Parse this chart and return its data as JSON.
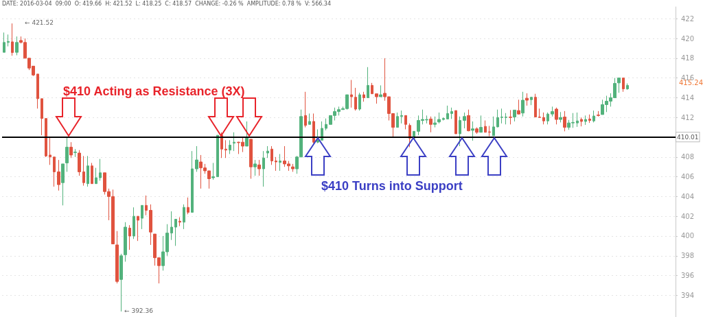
{
  "chart_data": {
    "type": "candlestick",
    "categories": [
      null,
      null,
      null,
      null,
      null,
      null,
      null,
      null,
      null,
      null,
      null,
      null,
      null,
      null,
      null,
      null,
      null,
      null,
      null,
      null,
      null,
      null,
      null,
      null,
      null,
      null,
      null,
      null,
      null,
      null,
      null,
      null,
      null,
      null,
      null,
      null,
      null,
      null,
      null,
      null,
      null,
      null,
      null,
      null,
      null,
      null,
      null,
      null,
      null,
      null,
      null,
      null,
      null,
      null,
      null,
      null,
      null,
      null,
      null,
      null,
      null,
      null,
      null,
      null,
      null,
      null,
      null,
      null,
      null,
      null,
      null,
      null,
      null,
      null,
      null,
      null,
      null,
      null,
      null,
      null,
      null,
      null,
      null,
      null,
      null,
      null,
      null,
      null,
      null,
      null,
      null,
      null,
      null,
      null,
      null,
      null,
      null,
      null,
      null,
      null,
      null,
      null,
      null,
      null,
      null,
      null,
      null,
      null,
      null,
      null,
      null,
      null,
      null,
      null,
      null,
      null,
      null,
      null,
      null,
      null,
      null,
      null,
      null,
      null,
      null,
      null,
      null,
      null,
      null,
      null,
      null,
      null,
      null,
      null,
      null,
      null,
      null,
      null,
      null,
      null,
      null,
      null,
      null,
      null,
      null,
      null,
      null,
      null,
      null,
      null,
      null,
      null,
      null,
      null,
      null,
      null,
      null,
      null,
      null,
      null,
      null
    ],
    "ohlc": [
      [
        418.6,
        420.6,
        418.6,
        419.6
      ],
      [
        419.6,
        420.4,
        419.2,
        419.7
      ],
      [
        419.66,
        421.52,
        418.25,
        418.57
      ],
      [
        418.6,
        420.2,
        418.3,
        419.6
      ],
      [
        419.8,
        420.2,
        419.5,
        419.6
      ],
      [
        419.6,
        420.0,
        418.0,
        418.0
      ],
      [
        418.0,
        418.0,
        416.8,
        417.0
      ],
      [
        417.2,
        417.2,
        416.2,
        416.3
      ],
      [
        416.4,
        416.4,
        412.9,
        413.9
      ],
      [
        413.9,
        413.9,
        410.2,
        411.9
      ],
      [
        411.9,
        411.9,
        408.0,
        408.1
      ],
      [
        408.2,
        410.0,
        407.2,
        408.0
      ],
      [
        408.0,
        408.0,
        405.0,
        406.5
      ],
      [
        406.5,
        407.7,
        404.6,
        405.2
      ],
      [
        405.4,
        407.3,
        403.1,
        407.3
      ],
      [
        407.4,
        410.0,
        406.5,
        409.0
      ],
      [
        409.0,
        409.5,
        407.9,
        408.2
      ],
      [
        408.45,
        408.8,
        408.0,
        408.5
      ],
      [
        408.4,
        408.7,
        406.1,
        406.5
      ],
      [
        406.5,
        408.1,
        405.1,
        405.4
      ],
      [
        405.3,
        408.1,
        405.0,
        407.1
      ],
      [
        407.1,
        407.4,
        405.3,
        405.3
      ],
      [
        405.3,
        406.9,
        405.3,
        405.9
      ],
      [
        405.9,
        407.8,
        405.6,
        406.4
      ],
      [
        406.4,
        406.4,
        404.2,
        404.5
      ],
      [
        404.5,
        404.8,
        401.6,
        404.0
      ],
      [
        404.0,
        404.7,
        399.2,
        399.2
      ],
      [
        399.1,
        400.5,
        395.2,
        395.4
      ],
      [
        395.6,
        398.2,
        392.36,
        398.0
      ],
      [
        398.1,
        401.4,
        397.4,
        400.9
      ],
      [
        400.8,
        401.1,
        398.6,
        400.0
      ],
      [
        400.0,
        402.9,
        399.7,
        402.0
      ],
      [
        402.0,
        402.0,
        399.5,
        401.6
      ],
      [
        401.8,
        403.1,
        400.7,
        403.1
      ],
      [
        403.1,
        404.1,
        402.1,
        402.6
      ],
      [
        402.6,
        403.2,
        399.1,
        400.4
      ],
      [
        400.2,
        400.2,
        397.0,
        397.8
      ],
      [
        397.8,
        397.8,
        395.2,
        397.0
      ],
      [
        397.0,
        400.0,
        396.5,
        398.4
      ],
      [
        398.4,
        401.2,
        398.0,
        400.3
      ],
      [
        400.3,
        402.5,
        399.6,
        400.9
      ],
      [
        400.9,
        401.7,
        399.0,
        401.7
      ],
      [
        401.5,
        401.9,
        401.0,
        401.4
      ],
      [
        401.4,
        403.2,
        400.7,
        402.9
      ],
      [
        402.9,
        403.9,
        402.2,
        402.4
      ],
      [
        402.4,
        408.6,
        402.4,
        406.8
      ],
      [
        406.8,
        409.1,
        406.5,
        407.7
      ],
      [
        407.5,
        408.2,
        404.8,
        406.9
      ],
      [
        406.9,
        407.3,
        406.3,
        406.6
      ],
      [
        406.6,
        406.6,
        404.8,
        405.8
      ],
      [
        405.9,
        407.4,
        405.7,
        406.0
      ],
      [
        406.0,
        410.2,
        406.0,
        410.2
      ],
      [
        410.2,
        410.5,
        407.9,
        408.8
      ],
      [
        408.8,
        409.7,
        407.9,
        408.7
      ],
      [
        408.7,
        409.7,
        408.3,
        409.2
      ],
      [
        409.4,
        410.5,
        408.6,
        409.5
      ],
      [
        409.5,
        409.55,
        408.3,
        409.45
      ],
      [
        409.5,
        410.0,
        408.5,
        409.1
      ],
      [
        409.1,
        411.6,
        409.1,
        409.9
      ],
      [
        409.8,
        409.8,
        405.8,
        407.0
      ],
      [
        407.0,
        407.7,
        406.1,
        407.3
      ],
      [
        407.2,
        407.7,
        406.1,
        406.8
      ],
      [
        406.8,
        408.6,
        405.0,
        407.9
      ],
      [
        408.4,
        409.1,
        407.9,
        408.6
      ],
      [
        408.8,
        409.1,
        407.2,
        407.6
      ],
      [
        407.6,
        408.0,
        406.6,
        407.5
      ],
      [
        407.45,
        408.3,
        406.6,
        407.6
      ],
      [
        407.6,
        409.1,
        407.0,
        407.3
      ],
      [
        407.3,
        407.6,
        406.6,
        407.1
      ],
      [
        407.0,
        407.3,
        406.5,
        406.8
      ],
      [
        406.8,
        408.1,
        406.3,
        408.0
      ],
      [
        408.0,
        412.8,
        408.0,
        412.1
      ],
      [
        412.2,
        414.6,
        411.0,
        411.2
      ],
      [
        411.3,
        412.4,
        411.3,
        411.6
      ],
      [
        411.6,
        412.4,
        409.4,
        409.5
      ],
      [
        409.5,
        410.8,
        409.4,
        409.7
      ],
      [
        409.7,
        411.6,
        409.7,
        410.9
      ],
      [
        410.9,
        411.9,
        410.7,
        411.3
      ],
      [
        411.3,
        412.2,
        411.3,
        412.2
      ],
      [
        412.2,
        413.0,
        411.7,
        412.6
      ],
      [
        412.6,
        413.1,
        412.2,
        412.8
      ],
      [
        412.8,
        413.1,
        412.8,
        412.9
      ],
      [
        412.9,
        414.3,
        412.8,
        414.3
      ],
      [
        414.3,
        415.8,
        413.0,
        414.1
      ],
      [
        414.05,
        415.0,
        412.7,
        412.85
      ],
      [
        412.85,
        414.5,
        412.7,
        414.3
      ],
      [
        414.3,
        414.6,
        413.6,
        414.0
      ],
      [
        414.0,
        417.1,
        414.0,
        415.25
      ],
      [
        415.25,
        415.5,
        414.4,
        414.4
      ],
      [
        414.4,
        414.4,
        413.4,
        414.1
      ],
      [
        414.1,
        415.25,
        414.1,
        414.3
      ],
      [
        414.45,
        418.0,
        413.7,
        414.1
      ],
      [
        414.1,
        414.1,
        411.7,
        412.4
      ],
      [
        412.4,
        412.4,
        410.05,
        411.0
      ],
      [
        411.0,
        412.5,
        411.0,
        412.1
      ],
      [
        412.1,
        412.7,
        411.4,
        412.2
      ],
      [
        412.2,
        412.2,
        410.8,
        411.3
      ],
      [
        411.2,
        411.4,
        409.0,
        409.9
      ],
      [
        409.9,
        410.6,
        409.9,
        410.6
      ],
      [
        410.6,
        412.2,
        410.2,
        411.7
      ],
      [
        411.7,
        412.8,
        411.3,
        411.8
      ],
      [
        411.75,
        412.2,
        411.4,
        411.8
      ],
      [
        411.85,
        412.1,
        410.5,
        411.3
      ],
      [
        411.3,
        412.1,
        411.0,
        411.45
      ],
      [
        411.55,
        412.5,
        411.4,
        411.8
      ],
      [
        411.8,
        412.0,
        411.7,
        411.9
      ],
      [
        411.85,
        413.2,
        411.85,
        412.4
      ],
      [
        412.4,
        413.0,
        411.85,
        412.6
      ],
      [
        412.7,
        412.7,
        410.35,
        410.35
      ],
      [
        410.35,
        412.1,
        409.1,
        411.7
      ],
      [
        411.7,
        412.5,
        410.9,
        412.1
      ],
      [
        412.2,
        412.8,
        410.6,
        410.65
      ],
      [
        410.7,
        411.6,
        409.65,
        410.85
      ],
      [
        410.85,
        411.0,
        410.35,
        410.5
      ],
      [
        410.5,
        412.2,
        410.5,
        411.0
      ],
      [
        411.1,
        411.7,
        410.5,
        410.5
      ],
      [
        410.55,
        411.15,
        410.1,
        410.5
      ],
      [
        410.15,
        412.1,
        410.15,
        411.05
      ],
      [
        411.05,
        412.8,
        411.0,
        412.0
      ],
      [
        412.0,
        412.9,
        411.4,
        412.05
      ],
      [
        412.0,
        412.45,
        411.3,
        412.05
      ],
      [
        412.05,
        412.75,
        411.3,
        412.0
      ],
      [
        412.05,
        412.75,
        411.6,
        412.75
      ],
      [
        412.7,
        413.8,
        412.3,
        412.35
      ],
      [
        412.45,
        414.6,
        412.1,
        413.75
      ],
      [
        413.95,
        414.45,
        413.2,
        413.75
      ],
      [
        413.8,
        414.05,
        413.25,
        414.05
      ],
      [
        414.05,
        414.4,
        412.05,
        412.05
      ],
      [
        412.05,
        412.9,
        412.0,
        412.0
      ],
      [
        412.0,
        412.5,
        411.3,
        411.65
      ],
      [
        411.65,
        412.5,
        411.3,
        412.35
      ],
      [
        412.35,
        413.1,
        412.1,
        412.6
      ],
      [
        412.85,
        413.0,
        411.3,
        411.8
      ],
      [
        411.8,
        412.55,
        411.5,
        412.0
      ],
      [
        412.05,
        412.65,
        410.6,
        411.0
      ],
      [
        411.0,
        411.75,
        410.75,
        411.45
      ],
      [
        411.45,
        412.45,
        410.95,
        411.5
      ],
      [
        411.45,
        412.5,
        411.05,
        411.65
      ],
      [
        411.8,
        412.0,
        411.1,
        411.6
      ],
      [
        411.6,
        412.2,
        411.25,
        411.8
      ],
      [
        411.85,
        412.3,
        411.45,
        411.7
      ],
      [
        411.65,
        412.7,
        411.5,
        412.15
      ],
      [
        412.25,
        412.65,
        412.1,
        412.2
      ],
      [
        412.3,
        413.8,
        412.3,
        413.3
      ],
      [
        413.3,
        414.2,
        412.55,
        413.65
      ],
      [
        413.65,
        414.45,
        413.1,
        414.0
      ],
      [
        414.0,
        416.0,
        414.0,
        415.45
      ],
      [
        415.5,
        416.0,
        414.5,
        416.0
      ],
      [
        416.0,
        416.0,
        414.6,
        414.9
      ],
      [
        414.9,
        415.45,
        414.8,
        415.24
      ],
      null,
      null,
      null,
      null,
      null,
      null,
      null,
      null,
      null,
      null,
      null
    ],
    "colors": [
      "#53b27c",
      "#53b27c",
      "#e0533f",
      "#53b27c",
      "#e0533f",
      "#e0533f",
      "#e0533f",
      "#e0533f",
      "#e0533f",
      "#e0533f",
      "#e0533f",
      "#e0533f",
      "#e0533f",
      "#e0533f",
      "#53b27c",
      "#53b27c",
      "#e0533f",
      "#53b27c",
      "#e0533f",
      "#e0533f",
      "#53b27c",
      "#e0533f",
      "#53b27c",
      "#53b27c",
      "#e0533f",
      "#e0533f",
      "#e0533f",
      "#e0533f",
      "#53b27c",
      "#53b27c",
      "#e0533f",
      "#53b27c",
      "#e0533f",
      "#53b27c",
      "#e0533f",
      "#e0533f",
      "#e0533f",
      "#e0533f",
      "#53b27c",
      "#53b27c",
      "#53b27c",
      "#53b27c",
      "#e0533f",
      "#53b27c",
      "#e0533f",
      "#53b27c",
      "#53b27c",
      "#e0533f",
      "#e0533f",
      "#e0533f",
      "#53b27c",
      "#53b27c",
      "#e0533f",
      "#e0533f",
      "#53b27c",
      "#53b27c",
      "#e0533f",
      "#e0533f",
      "#53b27c",
      "#e0533f",
      "#53b27c",
      "#e0533f",
      "#53b27c",
      "#53b27c",
      "#e0533f",
      "#e0533f",
      "#53b27c",
      "#e0533f",
      "#e0533f",
      "#e0533f",
      "#53b27c",
      "#53b27c",
      "#e0533f",
      "#53b27c",
      "#e0533f",
      "#53b27c",
      "#53b27c",
      "#53b27c",
      "#53b27c",
      "#53b27c",
      "#53b27c",
      "#53b27c",
      "#53b27c",
      "#e0533f",
      "#e0533f",
      "#53b27c",
      "#e0533f",
      "#53b27c",
      "#e0533f",
      "#e0533f",
      "#53b27c",
      "#e0533f",
      "#e0533f",
      "#e0533f",
      "#53b27c",
      "#53b27c",
      "#e0533f",
      "#e0533f",
      "#53b27c",
      "#53b27c",
      "#53b27c",
      "#53b27c",
      "#e0533f",
      "#53b27c",
      "#53b27c",
      "#53b27c",
      "#53b27c",
      "#53b27c",
      "#e0533f",
      "#53b27c",
      "#53b27c",
      "#e0533f",
      "#53b27c",
      "#e0533f",
      "#53b27c",
      "#e0533f",
      "#e0533f",
      "#53b27c",
      "#53b27c",
      "#53b27c",
      "#53b27c",
      "#e0533f",
      "#53b27c",
      "#e0533f",
      "#53b27c",
      "#e0533f",
      "#53b27c",
      "#e0533f",
      "#e0533f",
      "#e0533f",
      "#53b27c",
      "#53b27c",
      "#e0533f",
      "#53b27c",
      "#e0533f",
      "#53b27c",
      "#53b27c",
      "#53b27c",
      "#e0533f",
      "#53b27c",
      "#e0533f",
      "#53b27c",
      "#e0533f",
      "#53b27c",
      "#53b27c",
      "#53b27c",
      "#53b27c",
      "#53b27c",
      "#e0533f",
      "#53b27c",
      null,
      null,
      null,
      null,
      null,
      null,
      null,
      null,
      null,
      null,
      null
    ],
    "ylim": [
      391.8,
      423.2
    ],
    "yticks": [
      394,
      396,
      398,
      400,
      402,
      404,
      406,
      408,
      412,
      414,
      416,
      418,
      420,
      422
    ],
    "grid": "y",
    "tick_labels": "y",
    "ref_lines": [
      {
        "axis": "y",
        "value": 410.01,
        "label": "410.01",
        "color": "#000000"
      }
    ],
    "annotations": [
      "DATE: 2016-03-04  09:00  O: 419.66  H: 421.52  L: 418.25  C: 418.57  CHANGE: -0.26 %  AMPLITUDE: 0.78 %  V: 566.34",
      "$410 Acting as Resistance (3X)",
      "$410 Turns into Support",
      "← 421.52",
      "← 392.36",
      "415.24"
    ]
  }
}
